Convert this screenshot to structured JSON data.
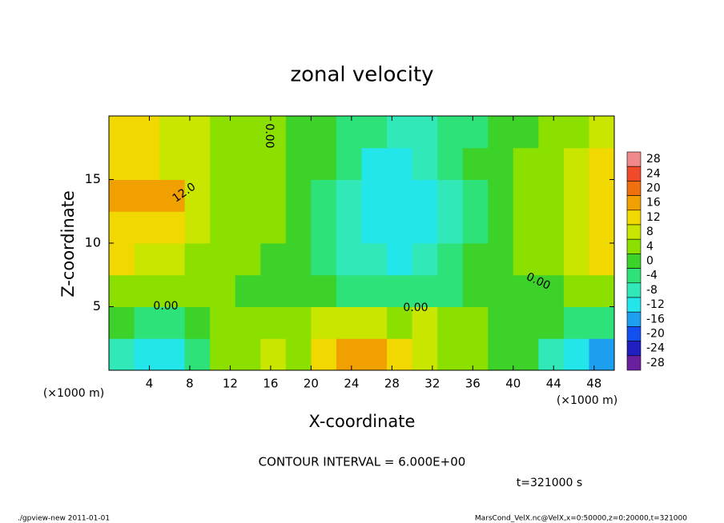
{
  "chart_data": {
    "type": "heatmap",
    "title": "zonal velocity",
    "xlabel": "X-coordinate",
    "ylabel": "Z-coordinate",
    "x_unit": "(×1000 m)",
    "annotation": "CONTOUR INTERVAL = 6.000E+00",
    "time_label": "t=321000 s",
    "footer_left": "./gpview-new  2011-01-01",
    "footer_right": "MarsCond_VelX.nc@VelX,x=0:50000,z=0:20000,t=321000",
    "contour_labels": [
      "12.0",
      "0.00",
      "0.00",
      "0.00",
      "0.00"
    ],
    "xlim": [
      0,
      50
    ],
    "ylim": [
      0,
      20
    ],
    "xticks": [
      4,
      8,
      12,
      16,
      20,
      24,
      28,
      32,
      36,
      40,
      44,
      48
    ],
    "yticks": [
      5,
      10,
      15
    ],
    "x": [
      1.25,
      3.75,
      6.25,
      8.75,
      11.25,
      13.75,
      16.25,
      18.75,
      21.25,
      23.75,
      26.25,
      28.75,
      31.25,
      33.75,
      36.25,
      38.75,
      41.25,
      43.75,
      46.25,
      48.75
    ],
    "y": [
      1.25,
      3.75,
      6.25,
      8.75,
      11.25,
      13.75,
      16.25,
      18.75
    ],
    "z": [
      [
        -10,
        -13,
        -12,
        -4,
        2,
        5,
        6,
        4,
        10,
        15,
        17,
        12,
        8,
        5,
        3,
        0,
        -2,
        -8,
        -14,
        -16
      ],
      [
        -2,
        -4,
        -3,
        0,
        2,
        4,
        5,
        3,
        6,
        8,
        6,
        5,
        6,
        5,
        3,
        1,
        0,
        -1,
        -3,
        -4
      ],
      [
        5,
        4,
        3,
        2,
        2,
        1,
        0,
        1,
        -1,
        -4,
        -6,
        -6,
        -5,
        -3,
        -1,
        0,
        -1,
        0,
        2,
        3
      ],
      [
        10,
        9,
        7,
        5,
        3,
        2,
        1,
        0,
        -3,
        -7,
        -10,
        -11,
        -9,
        -5,
        -2,
        0,
        3,
        4,
        7,
        10
      ],
      [
        12,
        13,
        12,
        6,
        4,
        3,
        2,
        0,
        -4,
        -9,
        -12,
        -13,
        -11,
        -7,
        -3,
        1,
        3,
        5,
        9,
        12
      ],
      [
        16,
        17,
        14,
        8,
        5,
        3,
        2,
        0,
        -4,
        -8,
        -11,
        -13,
        -11,
        -7,
        -3,
        1,
        3,
        5,
        9,
        13
      ],
      [
        13,
        12,
        9,
        7,
        5,
        3,
        2,
        0,
        -2,
        -6,
        -11,
        -12,
        -10,
        -6,
        -2,
        0,
        2,
        4,
        7,
        10
      ],
      [
        11,
        10,
        8,
        7,
        5,
        4,
        3,
        1,
        0,
        -3,
        -6,
        -9,
        -8,
        -6,
        -3,
        -1,
        1,
        3,
        5,
        8
      ]
    ],
    "levels": [
      28,
      24,
      20,
      16,
      12,
      8,
      4,
      0,
      -4,
      -8,
      -12,
      -16,
      -20,
      -24,
      -28
    ],
    "colors": [
      "#f08a8a",
      "#f04a2a",
      "#f07010",
      "#f0a000",
      "#f0d800",
      "#c8e600",
      "#8ce000",
      "#3cd22a",
      "#2ee27a",
      "#30e8b8",
      "#22e6ea",
      "#1ea0f0",
      "#1450f0",
      "#2020c0",
      "#6a209e"
    ]
  }
}
